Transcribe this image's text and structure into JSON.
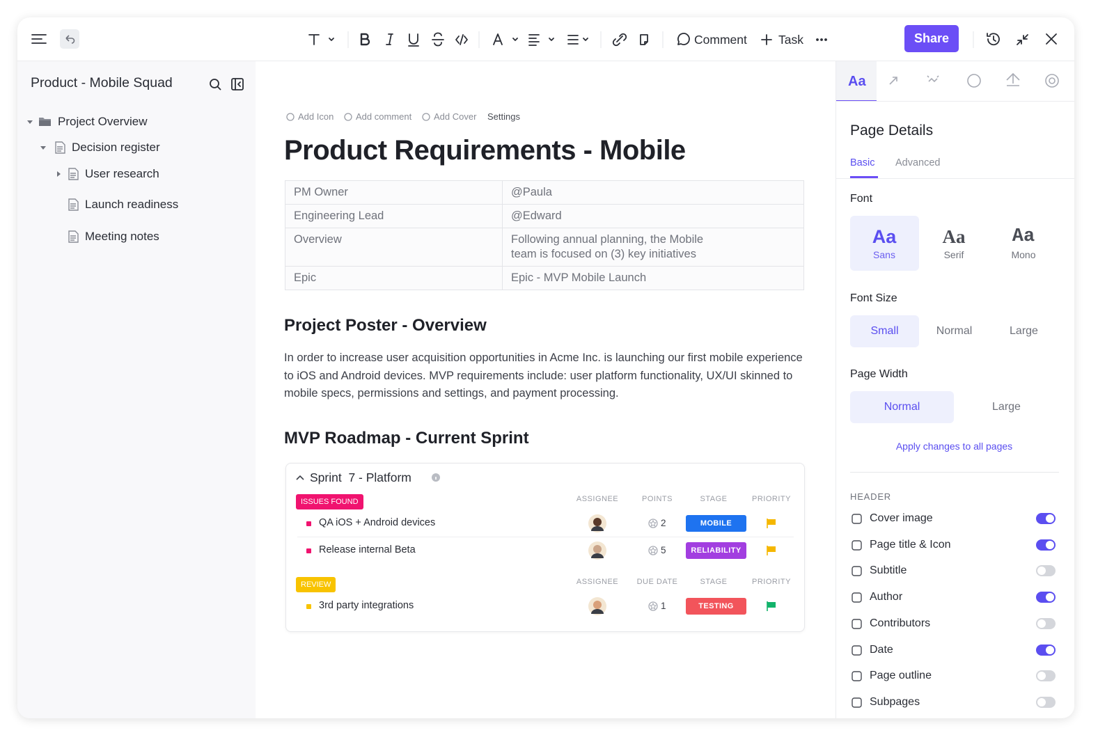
{
  "toolbar": {
    "comment": "Comment",
    "task": "Task",
    "share": "Share"
  },
  "sidebar": {
    "title": "Product - Mobile Squad",
    "tree": [
      {
        "label": "Project Overview",
        "level": 0,
        "kind": "folder",
        "caret": "open"
      },
      {
        "label": "Decision register",
        "level": 1,
        "kind": "doc",
        "caret": "open"
      },
      {
        "label": "User research",
        "level": 2,
        "kind": "doc",
        "caret": "closed"
      },
      {
        "label": "Launch readiness",
        "level": 2,
        "kind": "doc",
        "caret": "none"
      },
      {
        "label": "Meeting notes",
        "level": 2,
        "kind": "doc",
        "caret": "none"
      }
    ]
  },
  "doc": {
    "links": [
      "Add Icon",
      "Add comment",
      "Add Cover",
      "Settings"
    ],
    "title": "Product Requirements - Mobile",
    "table": {
      "rows": [
        [
          "PM Owner",
          "@Paula"
        ],
        [
          "Engineering Lead",
          "@Edward"
        ],
        [
          "Overview",
          "Following annual planning, the Mobile team is focused on (3) key initiatives"
        ],
        [
          "Epic",
          "Epic - MVP Mobile Launch"
        ]
      ]
    },
    "heading_1": "Project Poster - Overview",
    "paragraph": "In order to increase user acquisition opportunities in Acme Inc. is launching our first mobile experience to iOS and Android devices. MVP requirements include: user platform functionality, UX/UI skinned to mobile specs, permissions and settings, and payment processing.",
    "heading_2": "MVP Roadmap - Current Sprint",
    "sprint": {
      "title": "Sprint  7 - Platform",
      "groups": [
        {
          "label": "ISSUES FOUND",
          "color": "#f0136f",
          "columns": [
            "ASSIGNEE",
            "POINTS",
            "STAGE",
            "PRIORITY"
          ],
          "tasks": [
            {
              "name": "QA iOS + Android devices",
              "value": 2,
              "stage": "MOBILE",
              "stage_color": "#1e73f0",
              "flag": "#f5b700"
            },
            {
              "name": "Release internal Beta",
              "value": 5,
              "stage": "RELIABILITY",
              "stage_color": "#a23ee0",
              "flag": "#f5b700"
            }
          ]
        },
        {
          "label": "REVIEW",
          "color": "#f8c300",
          "columns": [
            "ASSIGNEE",
            "DUE DATE",
            "STAGE",
            "PRIORITY"
          ],
          "tasks": [
            {
              "name": "3rd party integrations",
              "value": 1,
              "stage": "TESTING",
              "stage_color": "#f2545b",
              "flag": "#12b36b"
            }
          ]
        }
      ]
    }
  },
  "panel": {
    "tab": "Aa",
    "title": "Page Details",
    "tabs": [
      "Basic",
      "Advanced"
    ],
    "font_label": "Font",
    "fonts": [
      {
        "sample": "Aa",
        "name": "Sans"
      },
      {
        "sample": "Aa",
        "name": "Serif"
      },
      {
        "sample": "Aa",
        "name": "Mono"
      }
    ],
    "font_size_label": "Font Size",
    "sizes": [
      "Small",
      "Normal",
      "Large"
    ],
    "width_label": "Page Width",
    "widths": [
      "Normal",
      "Large"
    ],
    "apply": "Apply changes to all pages",
    "header_label": "HEADER",
    "toggles": [
      {
        "label": "Cover image",
        "on": true
      },
      {
        "label": "Page title & Icon",
        "on": true
      },
      {
        "label": "Subtitle",
        "on": false
      },
      {
        "label": "Author",
        "on": true
      },
      {
        "label": "Contributors",
        "on": false
      },
      {
        "label": "Date",
        "on": true
      },
      {
        "label": "Page outline",
        "on": false
      },
      {
        "label": "Subpages",
        "on": false
      }
    ]
  }
}
